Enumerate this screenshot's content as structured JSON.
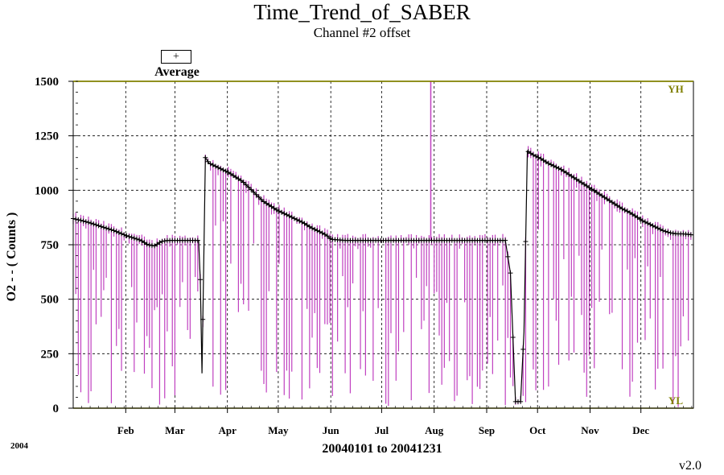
{
  "chart_data": {
    "type": "line",
    "title": "Time_Trend_of_SABER",
    "subtitle": "Channel #2 offset",
    "xlabel": "20040101 to 20041231",
    "ylabel": "O2 - - ( Counts )",
    "year_label": "2004",
    "version": "v2.0",
    "legend": [
      {
        "symbol": "+",
        "label": "Average"
      }
    ],
    "limit_labels": {
      "high": "YH",
      "low": "YL"
    },
    "xlim": [
      0,
      366
    ],
    "ylim": [
      0,
      1500
    ],
    "yticks": [
      0,
      250,
      500,
      750,
      1000,
      1250,
      1500
    ],
    "ytick_labels": [
      "0",
      "250",
      "500",
      "750",
      "1000",
      "1250",
      "1500"
    ],
    "month_ticks": [
      {
        "label": "Feb",
        "day": 31
      },
      {
        "label": "Mar",
        "day": 60
      },
      {
        "label": "Apr",
        "day": 91
      },
      {
        "label": "May",
        "day": 121
      },
      {
        "label": "Jun",
        "day": 152
      },
      {
        "label": "Jul",
        "day": 182
      },
      {
        "label": "Aug",
        "day": 213
      },
      {
        "label": "Sep",
        "day": 244
      },
      {
        "label": "Oct",
        "day": 274
      },
      {
        "label": "Nov",
        "day": 305
      },
      {
        "label": "Dec",
        "day": 335
      }
    ],
    "grid": true,
    "colors": {
      "range": "#c040c0",
      "average": "#000000",
      "limits": "#808000"
    },
    "average_series": {
      "x": [
        0,
        8,
        16,
        24,
        32,
        40,
        44,
        48,
        52,
        56,
        60,
        64,
        68,
        72,
        74,
        75,
        76,
        78,
        80,
        84,
        88,
        92,
        96,
        100,
        104,
        108,
        112,
        116,
        120,
        124,
        128,
        132,
        136,
        140,
        144,
        148,
        150,
        152,
        160,
        176,
        192,
        208,
        224,
        240,
        255,
        258,
        261,
        264,
        266,
        268,
        272,
        276,
        280,
        284,
        288,
        292,
        296,
        300,
        304,
        308,
        312,
        316,
        320,
        324,
        328,
        332,
        336,
        340,
        344,
        348,
        352,
        356,
        360,
        366
      ],
      "y": [
        870,
        855,
        835,
        815,
        790,
        770,
        750,
        745,
        765,
        770,
        770,
        770,
        770,
        770,
        770,
        590,
        160,
        1150,
        1125,
        1110,
        1095,
        1080,
        1060,
        1040,
        1010,
        980,
        950,
        930,
        910,
        895,
        880,
        865,
        850,
        830,
        815,
        800,
        790,
        775,
        770,
        770,
        770,
        770,
        770,
        770,
        770,
        620,
        30,
        30,
        350,
        1180,
        1160,
        1145,
        1125,
        1110,
        1095,
        1075,
        1055,
        1035,
        1015,
        995,
        975,
        955,
        935,
        915,
        900,
        880,
        860,
        845,
        830,
        815,
        805,
        800,
        800,
        795
      ]
    },
    "spike": {
      "x": 211,
      "y": 1500
    }
  }
}
